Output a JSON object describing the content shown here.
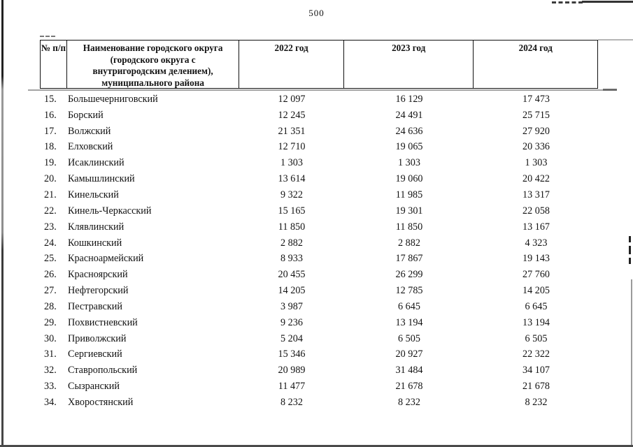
{
  "page": {
    "number": "500"
  },
  "table": {
    "headers": {
      "num": "№ п/п",
      "name_lines": [
        "Наименование городского округа",
        "(городского округа с",
        "внутригородским делением),",
        "муниципального района"
      ],
      "y2022": "2022 год",
      "y2023": "2023 год",
      "y2024": "2024 год"
    },
    "rows": [
      {
        "num": "15.",
        "name": "Большечерниговский",
        "y2022": "12 097",
        "y2023": "16 129",
        "y2024": "17 473"
      },
      {
        "num": "16.",
        "name": "Борский",
        "y2022": "12 245",
        "y2023": "24 491",
        "y2024": "25 715"
      },
      {
        "num": "17.",
        "name": "Волжский",
        "y2022": "21 351",
        "y2023": "24 636",
        "y2024": "27 920"
      },
      {
        "num": "18.",
        "name": "Елховский",
        "y2022": "12 710",
        "y2023": "19 065",
        "y2024": "20 336"
      },
      {
        "num": "19.",
        "name": "Исаклинский",
        "y2022": "1 303",
        "y2023": "1 303",
        "y2024": "1 303"
      },
      {
        "num": "20.",
        "name": "Камышлинский",
        "y2022": "13 614",
        "y2023": "19 060",
        "y2024": "20 422"
      },
      {
        "num": "21.",
        "name": "Кинельский",
        "y2022": "9 322",
        "y2023": "11 985",
        "y2024": "13 317"
      },
      {
        "num": "22.",
        "name": "Кинель-Черкасский",
        "y2022": "15 165",
        "y2023": "19 301",
        "y2024": "22 058"
      },
      {
        "num": "23.",
        "name": "Клявлинский",
        "y2022": "11 850",
        "y2023": "11 850",
        "y2024": "13 167"
      },
      {
        "num": "24.",
        "name": "Кошкинский",
        "y2022": "2 882",
        "y2023": "2 882",
        "y2024": "4 323"
      },
      {
        "num": "25.",
        "name": "Красноармейский",
        "y2022": "8 933",
        "y2023": "17 867",
        "y2024": "19 143"
      },
      {
        "num": "26.",
        "name": "Красноярский",
        "y2022": "20 455",
        "y2023": "26 299",
        "y2024": "27 760"
      },
      {
        "num": "27.",
        "name": "Нефтегорский",
        "y2022": "14 205",
        "y2023": "12 785",
        "y2024": "14 205"
      },
      {
        "num": "28.",
        "name": "Пестравский",
        "y2022": "3 987",
        "y2023": "6 645",
        "y2024": "6 645"
      },
      {
        "num": "29.",
        "name": "Похвистневский",
        "y2022": "9 236",
        "y2023": "13 194",
        "y2024": "13 194"
      },
      {
        "num": "30.",
        "name": "Приволжский",
        "y2022": "5 204",
        "y2023": "6 505",
        "y2024": "6 505"
      },
      {
        "num": "31.",
        "name": "Сергиевский",
        "y2022": "15 346",
        "y2023": "20 927",
        "y2024": "22 322"
      },
      {
        "num": "32.",
        "name": "Ставропольский",
        "y2022": "20 989",
        "y2023": "31 484",
        "y2024": "34 107"
      },
      {
        "num": "33.",
        "name": "Сызранский",
        "y2022": "11 477",
        "y2023": "21 678",
        "y2024": "21 678"
      },
      {
        "num": "34.",
        "name": "Хворостянский",
        "y2022": "8 232",
        "y2023": "8 232",
        "y2024": "8 232"
      }
    ]
  }
}
